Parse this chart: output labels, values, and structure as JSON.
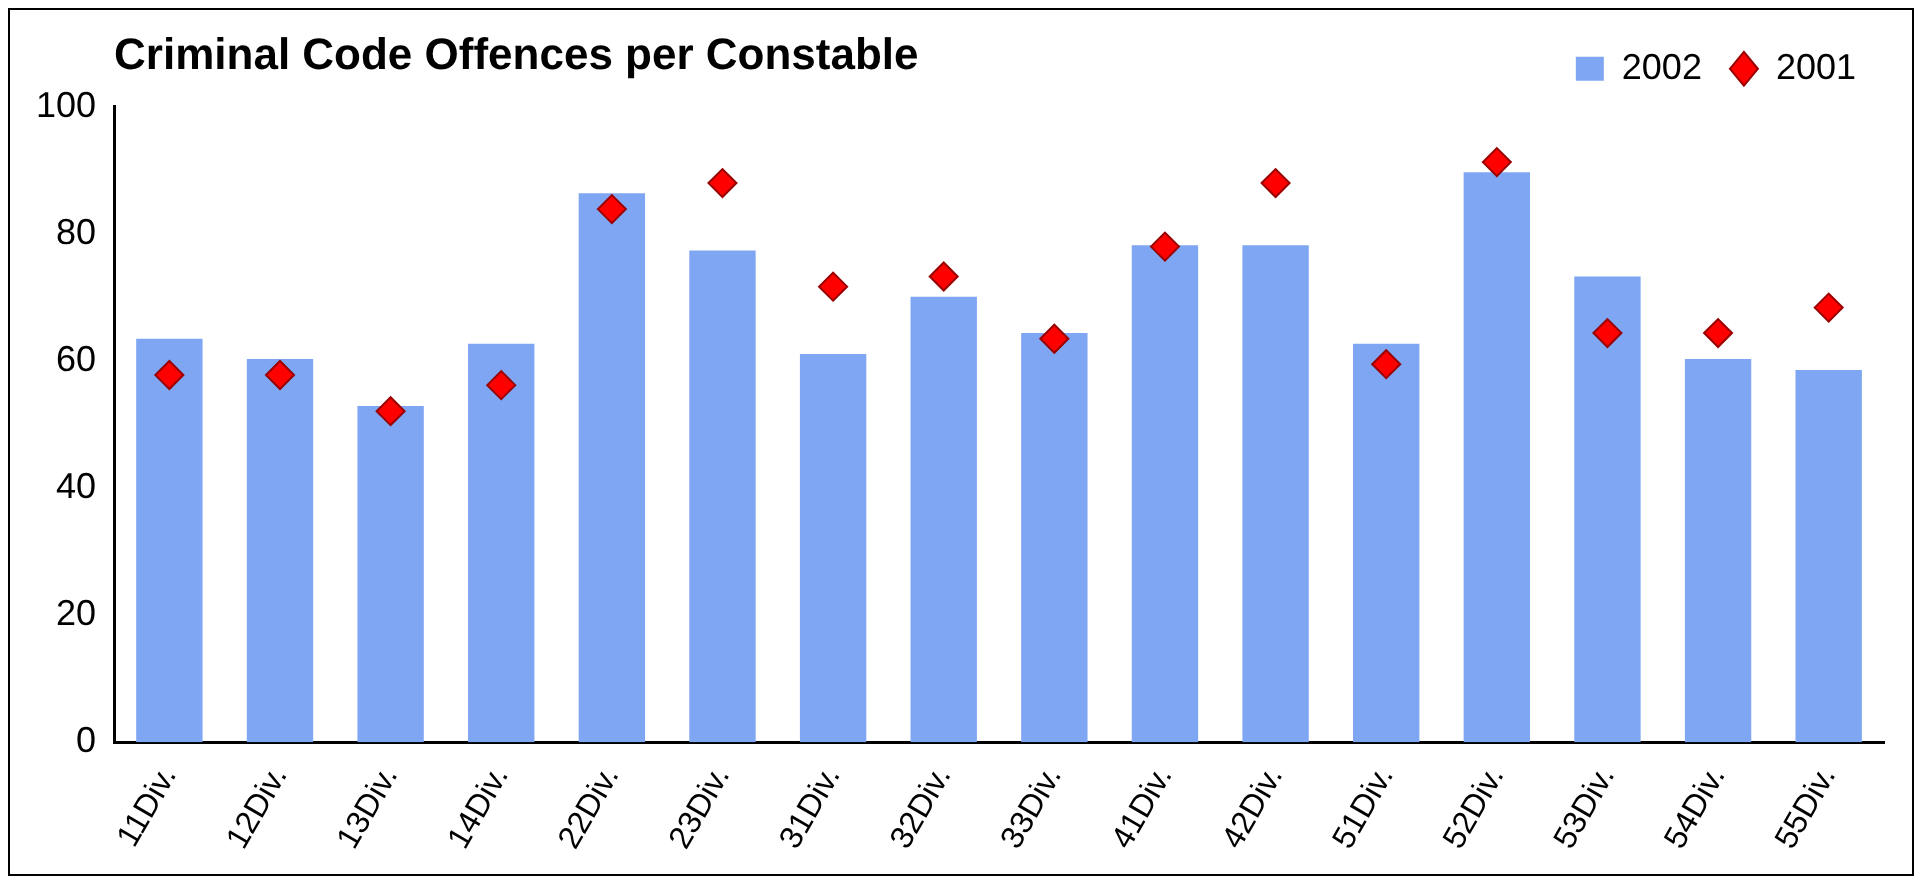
{
  "chart_data": {
    "type": "bar",
    "title": "Criminal Code Offences per Constable",
    "categories": [
      "11Div.",
      "12Div.",
      "13Div.",
      "14Div.",
      "22Div.",
      "23Div.",
      "31Div.",
      "32Div.",
      "33Div.",
      "41Div.",
      "42Div.",
      "51Div.",
      "52Div.",
      "53Div.",
      "54Div.",
      "55Div."
    ],
    "series": [
      {
        "name": "2002",
        "color": "#7fa6f2",
        "values": [
          63.5,
          60.3,
          52.9,
          62.7,
          86.4,
          77.4,
          61.1,
          70.1,
          64.4,
          78.2,
          78.2,
          62.7,
          89.7,
          73.3,
          60.3,
          58.6
        ]
      },
      {
        "name": "2001",
        "type": "scatter",
        "color": "#ff0000",
        "marker": "diamond",
        "values": [
          57.8,
          57.8,
          52.1,
          56.2,
          83.9,
          88.0,
          71.7,
          73.3,
          63.5,
          78.0,
          88.0,
          59.5,
          91.3,
          64.4,
          64.4,
          68.4
        ]
      }
    ],
    "ylim": [
      0,
      100
    ],
    "yticks": [
      0,
      20,
      40,
      60,
      80,
      100
    ],
    "grid": false,
    "legend": "top right"
  }
}
